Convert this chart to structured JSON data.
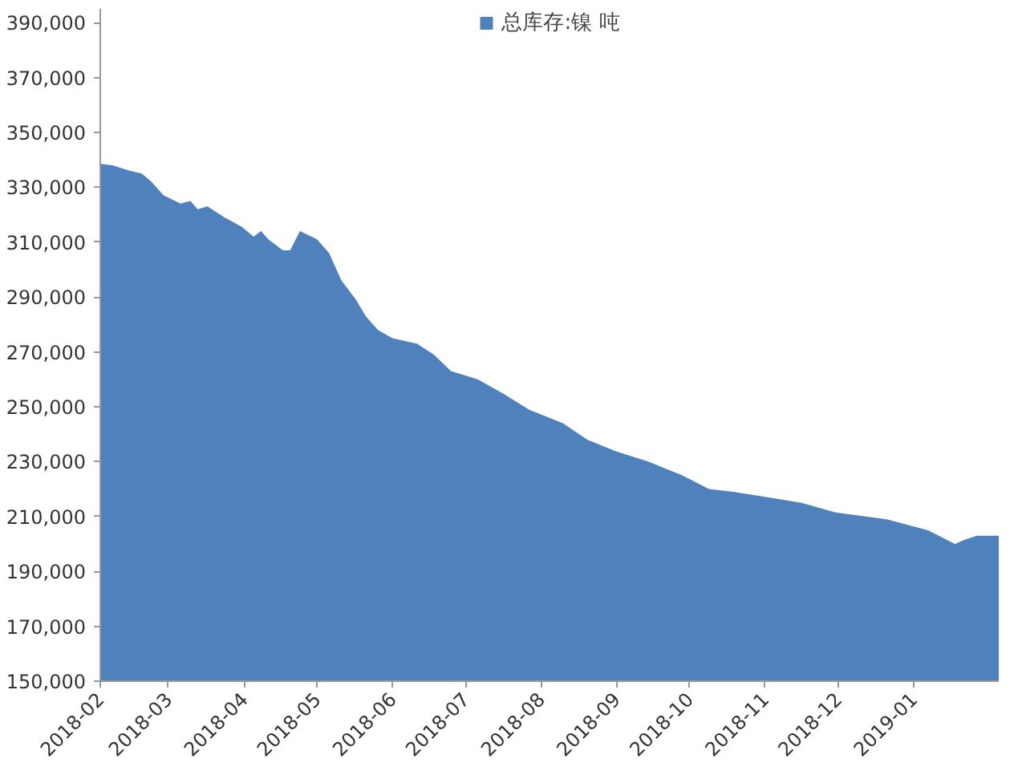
{
  "chart_data": {
    "type": "area",
    "x": [
      "2018-02-01",
      "2018-02-06",
      "2018-02-13",
      "2018-02-18",
      "2018-02-22",
      "2018-02-27",
      "2018-03-06",
      "2018-03-10",
      "2018-03-13",
      "2018-03-17",
      "2018-03-24",
      "2018-03-31",
      "2018-04-05",
      "2018-04-08",
      "2018-04-11",
      "2018-04-17",
      "2018-04-20",
      "2018-04-24",
      "2018-05-01",
      "2018-05-06",
      "2018-05-11",
      "2018-05-17",
      "2018-05-21",
      "2018-05-26",
      "2018-06-01",
      "2018-06-11",
      "2018-06-18",
      "2018-06-25",
      "2018-07-06",
      "2018-07-16",
      "2018-07-27",
      "2018-08-10",
      "2018-08-20",
      "2018-08-31",
      "2018-09-14",
      "2018-09-28",
      "2018-10-09",
      "2018-10-19",
      "2018-11-02",
      "2018-11-16",
      "2018-11-30",
      "2018-12-21",
      "2019-01-07",
      "2019-01-18",
      "2019-01-22",
      "2019-01-27",
      "2019-02-05"
    ],
    "series": [
      {
        "name": "总库存:镍 吨",
        "color": "#4f81bd",
        "values": [
          338500,
          338000,
          336000,
          335000,
          332000,
          327000,
          324000,
          325000,
          322000,
          323000,
          319000,
          315600,
          312000,
          314000,
          311000,
          307000,
          307000,
          314000,
          311000,
          306000,
          296000,
          289000,
          283000,
          278000,
          275000,
          273000,
          269000,
          263000,
          260000,
          255000,
          249000,
          244000,
          238000,
          234000,
          230000,
          225000,
          220000,
          219000,
          217000,
          215000,
          211500,
          209000,
          205000,
          200000,
          201500,
          203000,
          203000
        ]
      }
    ],
    "xlim": [
      "2018-02-01",
      "2019-02-05"
    ],
    "xticks": [
      "2018-02",
      "2018-03",
      "2018-04",
      "2018-05",
      "2018-06",
      "2018-07",
      "2018-08",
      "2018-09",
      "2018-10",
      "2018-11",
      "2018-12",
      "2019-01"
    ],
    "ylim": [
      150000,
      395000
    ],
    "yticks": [
      {
        "value": 150000,
        "label": "150,000"
      },
      {
        "value": 170000,
        "label": "170,000"
      },
      {
        "value": 190000,
        "label": "190,000"
      },
      {
        "value": 210000,
        "label": "210,000"
      },
      {
        "value": 230000,
        "label": "230,000"
      },
      {
        "value": 250000,
        "label": "250,000"
      },
      {
        "value": 270000,
        "label": "270,000"
      },
      {
        "value": 290000,
        "label": "290,000"
      },
      {
        "value": 310000,
        "label": "310,000"
      },
      {
        "value": 330000,
        "label": "330,000"
      },
      {
        "value": 350000,
        "label": "350,000"
      },
      {
        "value": 370000,
        "label": "370,000"
      },
      {
        "value": 390000,
        "label": "390,000"
      }
    ],
    "grid": false,
    "legend": "top"
  }
}
